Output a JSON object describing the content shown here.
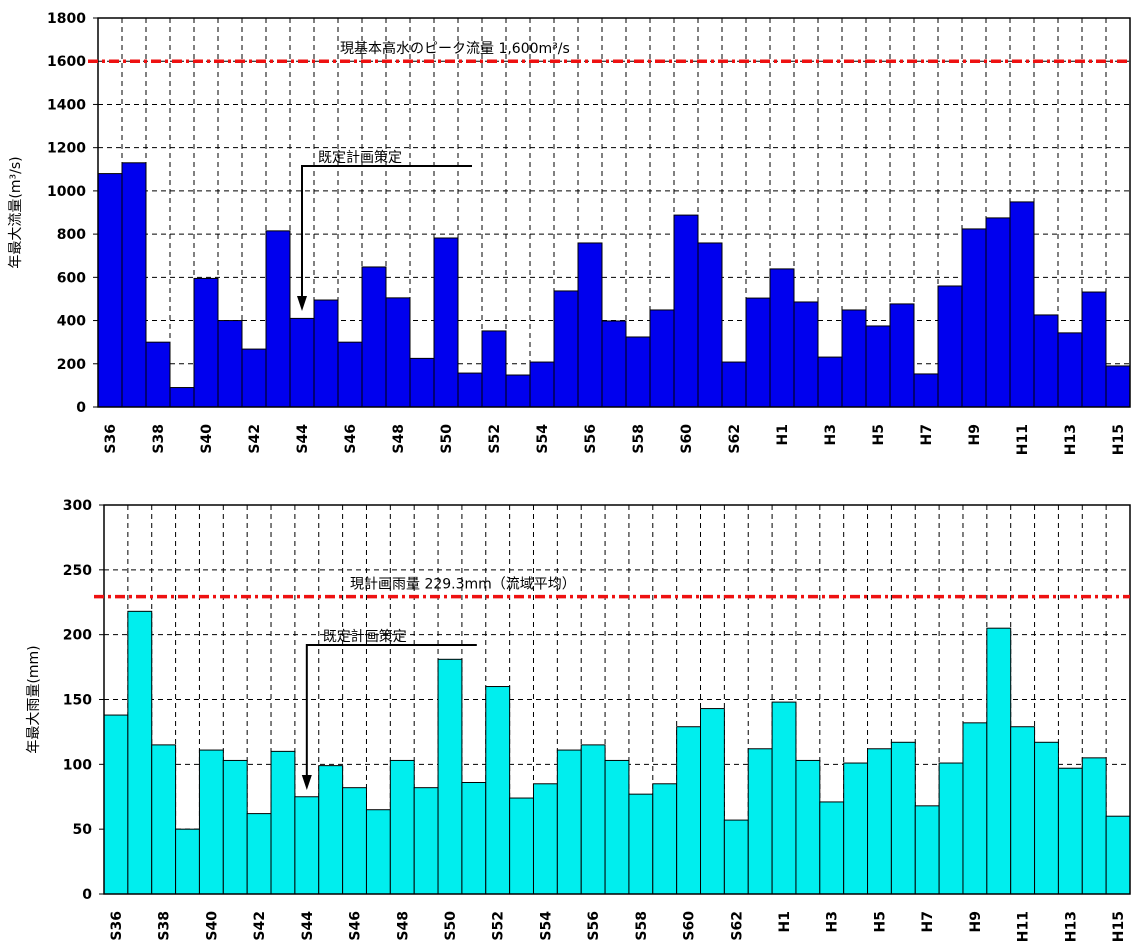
{
  "chart_data": [
    {
      "type": "bar",
      "ylabel": "年最大流量(m³/s)",
      "categories": [
        "S36",
        null,
        "S38",
        null,
        "S40",
        null,
        "S42",
        null,
        "S44",
        null,
        "S46",
        null,
        "S48",
        null,
        "S50",
        null,
        "S52",
        null,
        "S54",
        null,
        "S56",
        null,
        "S58",
        null,
        "S60",
        null,
        "S62",
        null,
        "H1",
        null,
        "H3",
        null,
        "H5",
        null,
        "H7",
        null,
        "H9",
        null,
        "H11",
        null,
        "H13",
        null,
        "H15"
      ],
      "values": [
        1080,
        1130,
        300,
        90,
        595,
        400,
        268,
        815,
        410,
        495,
        300,
        648,
        505,
        225,
        782,
        157,
        352,
        148,
        208,
        537,
        759,
        398,
        324,
        449,
        888,
        759,
        208,
        504,
        639,
        486,
        231,
        449,
        375,
        477,
        153,
        560,
        824,
        875,
        949,
        426,
        343,
        532,
        190
      ],
      "color": "#0000ee",
      "ylim": [
        0,
        1800
      ],
      "yticks": [
        0,
        200,
        400,
        600,
        800,
        1000,
        1200,
        1400,
        1600,
        1800
      ],
      "grid": true,
      "reference": {
        "value": 1600,
        "label": "現基本高水のピーク流量 1,600m³/s",
        "color": "#ee1111"
      },
      "annotation": "既定計画策定"
    },
    {
      "type": "bar",
      "ylabel": "年最大雨量(mm)",
      "categories": [
        "S36",
        null,
        "S38",
        null,
        "S40",
        null,
        "S42",
        null,
        "S44",
        null,
        "S46",
        null,
        "S48",
        null,
        "S50",
        null,
        "S52",
        null,
        "S54",
        null,
        "S56",
        null,
        "S58",
        null,
        "S60",
        null,
        "S62",
        null,
        "H1",
        null,
        "H3",
        null,
        "H5",
        null,
        "H7",
        null,
        "H9",
        null,
        "H11",
        null,
        "H13",
        null,
        "H15"
      ],
      "values": [
        138,
        218,
        115,
        50,
        111,
        103,
        62,
        110,
        75,
        99,
        82,
        65,
        103,
        82,
        181,
        86,
        160,
        74,
        85,
        111,
        115,
        103,
        77,
        85,
        129,
        143,
        57,
        112,
        148,
        103,
        71,
        101,
        112,
        117,
        68,
        101,
        132,
        205,
        129,
        117,
        97,
        105,
        60
      ],
      "color": "#00eeee",
      "ylim": [
        0,
        300
      ],
      "yticks": [
        0,
        50,
        100,
        150,
        200,
        250,
        300
      ],
      "grid": true,
      "reference": {
        "value": 229.3,
        "label": "現計画雨量 229.3mm（流域平均）",
        "color": "#ee1111"
      },
      "annotation": "既定計画策定"
    }
  ]
}
